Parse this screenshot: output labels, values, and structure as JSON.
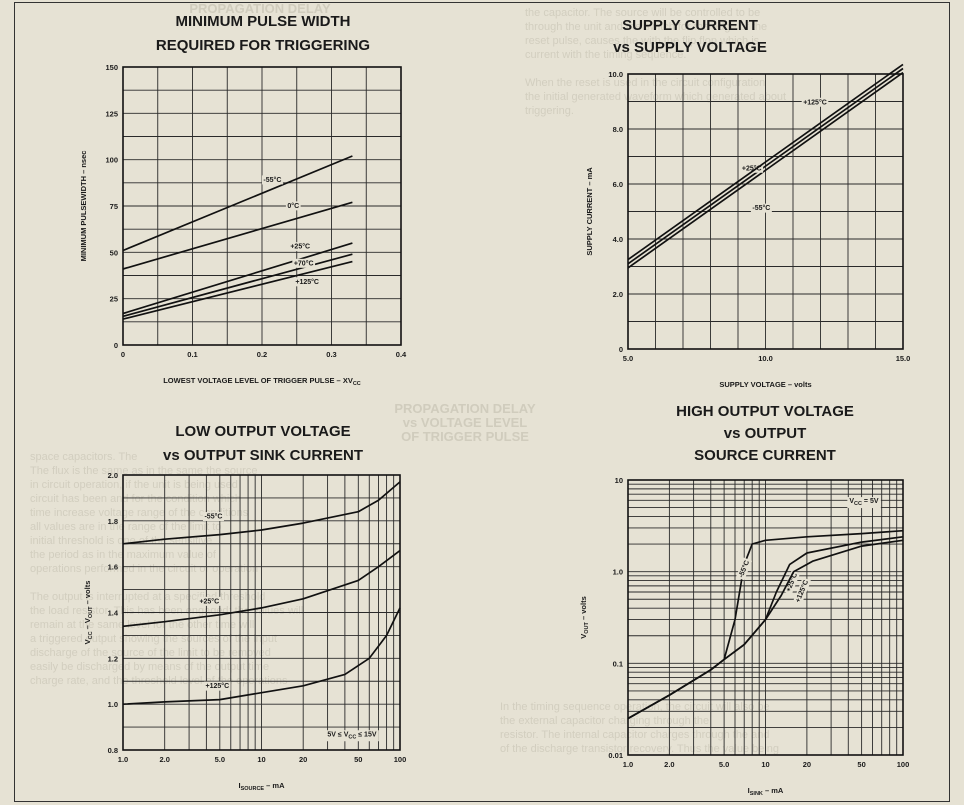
{
  "background_text": {
    "left_paragraphs": [
      "space capacitors. The",
      "The flux is the same as in the same the source",
      "in circuit operation, if the unit is being used",
      "circuit has been and for the condition which",
      "time increase voltage range of the conditions",
      "all values are in the range of the limit to",
      "initial threshold is one of the sensitive",
      "the period as in the maximum value of",
      "operations performed in the circuit or operation",
      "",
      "The output is interrupted at a specified threshold",
      "the load resistor. This has been engaged; the values will",
      "remain at the same level for the other time will",
      "a triggered output showing the sources of the input",
      "discharge of the source of the limit to be removed",
      "easily be discharged by means of the output time",
      "charge rate, and the threshold level of the operations"
    ],
    "right_paragraphs": [
      "the capacitor. The source will be controlled to be",
      "through the unit and the switch for the edge of the",
      "reset pulse, causes the with the flip flop which is",
      "current with the timing sequence.",
      "",
      "When the reset is used in the circuit configuration",
      "the initial generated waveform which generated about",
      "triggering."
    ],
    "bottom_right_paragraphs": [
      "In the timing sequence operation, the circuit will also be",
      "the external capacitor charging through the",
      "resistor. The internal capacitor charges through the and",
      "of the discharge transistor recovery. Thus the value being"
    ],
    "center_heading": [
      "PROPAGATION DELAY",
      "vs VOLTAGE LEVEL",
      "OF TRIGGER PULSE"
    ],
    "top_left_heading": "PROPAGATION DELAY"
  },
  "chart_data": [
    {
      "type": "line",
      "title": [
        "MINIMUM PULSE WIDTH",
        "REQUIRED FOR TRIGGERING"
      ],
      "xlabel": "LOWEST VOLTAGE LEVEL OF TRIGGER PULSE – XV",
      "xlabel_sub": "CC",
      "ylabel": "MINIMUM PULSEWIDTH – nsec",
      "x_scale": "linear",
      "y_scale": "linear",
      "xlim": [
        0,
        0.4
      ],
      "ylim": [
        0,
        150
      ],
      "xticks": [
        0,
        0.1,
        0.2,
        0.3,
        0.4
      ],
      "xtick_labels": [
        "0",
        "0.1",
        "0.2",
        "0.3",
        "0.4"
      ],
      "yticks": [
        0,
        25,
        50,
        75,
        100,
        125,
        150
      ],
      "ytick_labels": [
        "0",
        "25",
        "50",
        "75",
        "100",
        "125",
        "150"
      ],
      "grid_x": [
        0,
        0.05,
        0.1,
        0.15,
        0.2,
        0.25,
        0.3,
        0.35,
        0.4
      ],
      "grid_y": [
        0,
        12.5,
        25,
        37.5,
        50,
        62.5,
        75,
        87.5,
        100,
        112.5,
        125,
        137.5,
        150
      ],
      "series": [
        {
          "name": "-55°C",
          "x": [
            0,
            0.33
          ],
          "y": [
            51,
            102
          ],
          "label_at": [
            0.215,
            88
          ]
        },
        {
          "name": "0°C",
          "x": [
            0,
            0.33
          ],
          "y": [
            41,
            77
          ],
          "label_at": [
            0.245,
            74
          ]
        },
        {
          "name": "+25°C",
          "x": [
            0,
            0.33
          ],
          "y": [
            17,
            55
          ],
          "label_at": [
            0.255,
            52
          ]
        },
        {
          "name": "+70°C",
          "x": [
            0,
            0.33
          ],
          "y": [
            15.5,
            49
          ],
          "label_at": [
            0.26,
            43
          ]
        },
        {
          "name": "+125°C",
          "x": [
            0,
            0.33
          ],
          "y": [
            14,
            45
          ],
          "label_at": [
            0.265,
            33
          ]
        }
      ]
    },
    {
      "type": "line",
      "title": [
        "SUPPLY CURRENT",
        "vs SUPPLY VOLTAGE"
      ],
      "xlabel": "SUPPLY VOLTAGE – volts",
      "ylabel": "SUPPLY CURRENT – mA",
      "x_scale": "linear",
      "y_scale": "linear",
      "xlim": [
        5,
        15
      ],
      "ylim": [
        0,
        10
      ],
      "xticks": [
        5,
        10,
        15
      ],
      "xtick_labels": [
        "5.0",
        "10.0",
        "15.0"
      ],
      "yticks": [
        0,
        2,
        4,
        6,
        8,
        10
      ],
      "ytick_labels": [
        "0",
        "2.0",
        "4.0",
        "6.0",
        "8.0",
        "10.0"
      ],
      "grid_x": [
        5,
        6,
        7,
        8,
        9,
        10,
        11,
        12,
        13,
        14,
        15
      ],
      "grid_y": [
        0,
        1,
        2,
        3,
        4,
        5,
        6,
        7,
        8,
        9,
        10
      ],
      "series": [
        {
          "name": "+125°C",
          "x": [
            5,
            15
          ],
          "y": [
            2.95,
            10.05
          ],
          "label_at": [
            11.8,
            8.9
          ]
        },
        {
          "name": "+25°C",
          "x": [
            5,
            15
          ],
          "y": [
            3.1,
            10.2
          ],
          "label_at": [
            9.5,
            6.5
          ]
        },
        {
          "name": "-55°C",
          "x": [
            5,
            15
          ],
          "y": [
            3.25,
            10.35
          ],
          "label_at": [
            9.85,
            5.05
          ]
        }
      ]
    },
    {
      "type": "line",
      "title": [
        "LOW OUTPUT VOLTAGE",
        "vs OUTPUT SINK CURRENT"
      ],
      "xlabel": "I",
      "xlabel_sub": "SOURCE",
      "xlabel_suffix": " – mA",
      "ylabel": "V   – V    – volts",
      "ylabel_parts": [
        "V",
        "CC",
        " – V",
        "OUT",
        " – volts"
      ],
      "annotation": "5V ≤ V   ≤ 15V",
      "annotation_parts": [
        "5V ≤ V",
        "CC",
        " ≤ 15V"
      ],
      "x_scale": "log",
      "y_scale": "linear",
      "xlim": [
        1,
        100
      ],
      "ylim": [
        0.8,
        2.0
      ],
      "xticks": [
        1,
        2,
        5,
        10,
        20,
        50,
        100
      ],
      "xtick_labels": [
        "1.0",
        "2.0",
        "5.0",
        "10",
        "20",
        "50",
        "100"
      ],
      "yticks": [
        0.8,
        1.0,
        1.2,
        1.4,
        1.6,
        1.8,
        2.0
      ],
      "ytick_labels": [
        "0.8",
        "1.0",
        "1.2",
        "1.4",
        "1.6",
        "1.8",
        "2.0"
      ],
      "grid_x": [
        1,
        2,
        3,
        4,
        5,
        6,
        7,
        8,
        9,
        10,
        20,
        30,
        40,
        50,
        60,
        70,
        80,
        90,
        100
      ],
      "grid_y": [
        0.8,
        0.9,
        1.0,
        1.1,
        1.2,
        1.3,
        1.4,
        1.5,
        1.6,
        1.7,
        1.8,
        1.9,
        2.0
      ],
      "series": [
        {
          "name": "-55°C",
          "x": [
            1,
            2,
            5,
            10,
            20,
            50,
            70,
            100
          ],
          "y": [
            1.7,
            1.72,
            1.74,
            1.76,
            1.79,
            1.84,
            1.89,
            1.97
          ],
          "label_at": [
            4.5,
            1.81
          ]
        },
        {
          "name": "+25°C",
          "x": [
            1,
            2,
            5,
            10,
            20,
            50,
            70,
            100
          ],
          "y": [
            1.34,
            1.36,
            1.39,
            1.42,
            1.46,
            1.54,
            1.6,
            1.67
          ],
          "label_at": [
            4.2,
            1.44
          ]
        },
        {
          "name": "+125°C",
          "x": [
            1,
            2,
            5,
            10,
            20,
            40,
            60,
            80,
            100
          ],
          "y": [
            1.0,
            1.01,
            1.02,
            1.05,
            1.08,
            1.13,
            1.2,
            1.3,
            1.42
          ],
          "label_at": [
            4.8,
            1.07
          ]
        }
      ]
    },
    {
      "type": "line",
      "title": [
        "HIGH OUTPUT VOLTAGE",
        "vs OUTPUT",
        "SOURCE CURRENT"
      ],
      "xlabel": "I",
      "xlabel_sub": "SINK",
      "xlabel_suffix": " – mA",
      "ylabel": "V    – volts",
      "ylabel_parts": [
        "V",
        "OUT",
        " – volts"
      ],
      "annotation": "V   = 5V",
      "annotation_parts": [
        "V",
        "CC",
        " = 5V"
      ],
      "x_scale": "log",
      "y_scale": "log",
      "xlim": [
        1,
        100
      ],
      "ylim": [
        0.01,
        10
      ],
      "xticks": [
        1,
        2,
        5,
        10,
        20,
        50,
        100
      ],
      "xtick_labels": [
        "1.0",
        "2.0",
        "5.0",
        "10",
        "20",
        "50",
        "100"
      ],
      "yticks": [
        0.01,
        0.1,
        1,
        10
      ],
      "ytick_labels": [
        "0.01",
        "0.1",
        "1.0",
        "10"
      ],
      "grid_x": [
        1,
        2,
        3,
        4,
        5,
        6,
        7,
        8,
        9,
        10,
        20,
        30,
        40,
        50,
        60,
        70,
        80,
        90,
        100
      ],
      "grid_y": [
        0.01,
        0.02,
        0.03,
        0.04,
        0.05,
        0.06,
        0.07,
        0.08,
        0.09,
        0.1,
        0.2,
        0.3,
        0.4,
        0.5,
        0.6,
        0.7,
        0.8,
        0.9,
        1,
        2,
        3,
        4,
        5,
        6,
        7,
        8,
        9,
        10
      ],
      "series": [
        {
          "name": "-55°C",
          "x": [
            1,
            2,
            4,
            5,
            6,
            7,
            8,
            10,
            20,
            50,
            100
          ],
          "y": [
            0.025,
            0.045,
            0.085,
            0.11,
            0.3,
            1.2,
            2.0,
            2.2,
            2.4,
            2.6,
            2.8
          ],
          "label_at": [
            7.2,
            1.05
          ]
        },
        {
          "name": "+25°C",
          "x": [
            1,
            2,
            4,
            5,
            7,
            10,
            12,
            15,
            20,
            50,
            100
          ],
          "y": [
            0.025,
            0.045,
            0.085,
            0.11,
            0.16,
            0.3,
            0.6,
            1.2,
            1.6,
            2.1,
            2.4
          ],
          "label_at": [
            16,
            0.75
          ]
        },
        {
          "name": "+125°C",
          "x": [
            1,
            2,
            4,
            5,
            7,
            10,
            13,
            16,
            22,
            50,
            100
          ],
          "y": [
            0.025,
            0.045,
            0.085,
            0.11,
            0.16,
            0.3,
            0.55,
            1.0,
            1.3,
            1.9,
            2.2
          ],
          "label_at": [
            19,
            0.6
          ]
        }
      ]
    }
  ]
}
